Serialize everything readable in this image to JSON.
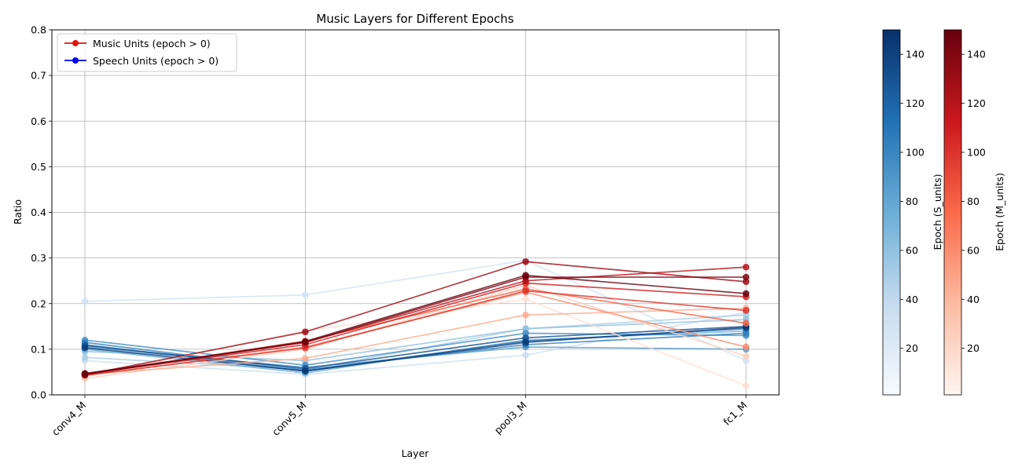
{
  "chart_data": {
    "type": "line",
    "title": "Music Layers for Different Epochs",
    "xlabel": "Layer",
    "ylabel": "Ratio",
    "categories": [
      "conv4_M",
      "conv5_M",
      "pool3_M",
      "fc1_M"
    ],
    "ylim": [
      0,
      0.8
    ],
    "yticks": [
      0.0,
      0.1,
      0.2,
      0.3,
      0.4,
      0.5,
      0.6,
      0.7,
      0.8
    ],
    "ytick_labels": [
      "0.0",
      "0.1",
      "0.2",
      "0.3",
      "0.4",
      "0.5",
      "0.6",
      "0.7",
      "0.8"
    ],
    "grid": true,
    "legend": {
      "position": "top-left",
      "entries": [
        {
          "label": "Music Units (epoch > 0)",
          "color": "#e0140f"
        },
        {
          "label": "Speech Units (epoch > 0)",
          "color": "#0000ee"
        }
      ]
    },
    "colorbars": [
      {
        "label": "Epoch (S_units)",
        "cmap": "Blues",
        "range": [
          1,
          150
        ],
        "ticks": [
          20,
          40,
          60,
          80,
          100,
          120,
          140
        ],
        "tick_labels": [
          "20",
          "40",
          "60",
          "80",
          "100",
          "120",
          "140"
        ]
      },
      {
        "label": "Epoch (M_units)",
        "cmap": "Reds",
        "range": [
          1,
          150
        ],
        "ticks": [
          20,
          40,
          60,
          80,
          100,
          120,
          140
        ],
        "tick_labels": [
          "20",
          "40",
          "60",
          "80",
          "100",
          "120",
          "140"
        ]
      }
    ],
    "series": [
      {
        "group": "speech",
        "epoch": 30,
        "values": [
          0.205,
          0.219,
          0.295,
          0.075
        ]
      },
      {
        "group": "speech",
        "epoch": 35,
        "values": [
          0.075,
          0.045,
          0.087,
          0.181
        ]
      },
      {
        "group": "speech",
        "epoch": 50,
        "values": [
          0.082,
          0.055,
          0.145,
          0.175
        ]
      },
      {
        "group": "speech",
        "epoch": 60,
        "values": [
          0.095,
          0.075,
          0.145,
          0.165
        ]
      },
      {
        "group": "speech",
        "epoch": 75,
        "values": [
          0.1,
          0.048,
          0.12,
          0.14
        ]
      },
      {
        "group": "speech",
        "epoch": 85,
        "values": [
          0.105,
          0.06,
          0.105,
          0.1
        ]
      },
      {
        "group": "speech",
        "epoch": 95,
        "values": [
          0.12,
          0.065,
          0.135,
          0.13
        ]
      },
      {
        "group": "speech",
        "epoch": 105,
        "values": [
          0.115,
          0.055,
          0.11,
          0.135
        ]
      },
      {
        "group": "speech",
        "epoch": 115,
        "values": [
          0.11,
          0.052,
          0.118,
          0.145
        ]
      },
      {
        "group": "speech",
        "epoch": 130,
        "values": [
          0.108,
          0.058,
          0.125,
          0.15
        ]
      },
      {
        "group": "speech",
        "epoch": 145,
        "values": [
          0.103,
          0.052,
          0.115,
          0.148
        ]
      },
      {
        "group": "music",
        "epoch": 15,
        "values": [
          0.04,
          0.14,
          0.21,
          0.02
        ]
      },
      {
        "group": "music",
        "epoch": 25,
        "values": [
          0.036,
          0.1,
          0.24,
          0.085
        ]
      },
      {
        "group": "music",
        "epoch": 45,
        "values": [
          0.045,
          0.08,
          0.175,
          0.19
        ]
      },
      {
        "group": "music",
        "epoch": 60,
        "values": [
          0.042,
          0.105,
          0.225,
          0.105
        ]
      },
      {
        "group": "music",
        "epoch": 80,
        "values": [
          0.045,
          0.118,
          0.232,
          0.157
        ]
      },
      {
        "group": "music",
        "epoch": 100,
        "values": [
          0.043,
          0.103,
          0.228,
          0.185
        ]
      },
      {
        "group": "music",
        "epoch": 110,
        "values": [
          0.046,
          0.11,
          0.245,
          0.215
        ]
      },
      {
        "group": "music",
        "epoch": 120,
        "values": [
          0.045,
          0.115,
          0.25,
          0.28
        ]
      },
      {
        "group": "music",
        "epoch": 130,
        "values": [
          0.044,
          0.138,
          0.292,
          0.248
        ]
      },
      {
        "group": "music",
        "epoch": 140,
        "values": [
          0.047,
          0.115,
          0.258,
          0.258
        ]
      },
      {
        "group": "music",
        "epoch": 150,
        "values": [
          0.045,
          0.117,
          0.262,
          0.222
        ]
      }
    ]
  }
}
